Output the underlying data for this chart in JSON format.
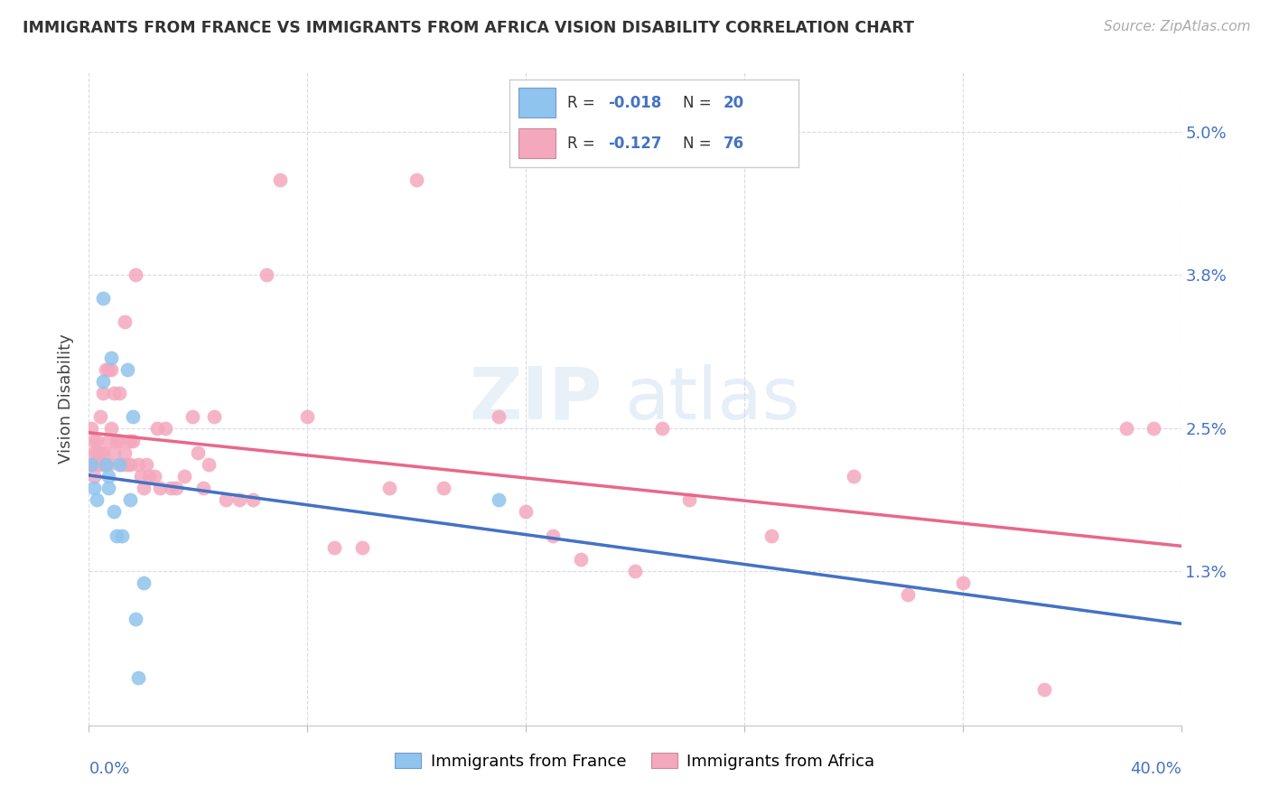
{
  "title": "IMMIGRANTS FROM FRANCE VS IMMIGRANTS FROM AFRICA VISION DISABILITY CORRELATION CHART",
  "source": "Source: ZipAtlas.com",
  "ylabel": "Vision Disability",
  "xlim": [
    0.0,
    0.4
  ],
  "ylim": [
    0.0,
    0.055
  ],
  "yticks": [
    0.0,
    0.013,
    0.025,
    0.038,
    0.05
  ],
  "ytick_labels": [
    "",
    "1.3%",
    "2.5%",
    "3.8%",
    "5.0%"
  ],
  "color_france": "#8ec4ed",
  "color_africa": "#f4a8be",
  "color_france_line": "#4472c4",
  "color_africa_line": "#e8688a",
  "color_france_dash": "#9ec8f0",
  "legend_r_france": "-0.018",
  "legend_n_france": "20",
  "legend_r_africa": "-0.127",
  "legend_n_africa": "76",
  "legend_color": "#4472c4",
  "watermark_zip": "ZIP",
  "watermark_atlas": "atlas",
  "france_x": [
    0.001,
    0.002,
    0.003,
    0.005,
    0.005,
    0.006,
    0.007,
    0.007,
    0.008,
    0.009,
    0.01,
    0.011,
    0.012,
    0.014,
    0.015,
    0.016,
    0.017,
    0.018,
    0.02,
    0.15
  ],
  "france_y": [
    0.022,
    0.02,
    0.019,
    0.036,
    0.029,
    0.022,
    0.021,
    0.02,
    0.031,
    0.018,
    0.016,
    0.022,
    0.016,
    0.03,
    0.019,
    0.026,
    0.009,
    0.004,
    0.012,
    0.019
  ],
  "africa_x": [
    0.001,
    0.001,
    0.002,
    0.002,
    0.002,
    0.003,
    0.003,
    0.003,
    0.004,
    0.004,
    0.004,
    0.005,
    0.005,
    0.005,
    0.006,
    0.006,
    0.007,
    0.007,
    0.007,
    0.008,
    0.008,
    0.009,
    0.009,
    0.01,
    0.011,
    0.011,
    0.012,
    0.013,
    0.013,
    0.014,
    0.015,
    0.015,
    0.016,
    0.017,
    0.018,
    0.019,
    0.02,
    0.021,
    0.022,
    0.024,
    0.025,
    0.026,
    0.028,
    0.03,
    0.032,
    0.035,
    0.038,
    0.04,
    0.042,
    0.044,
    0.046,
    0.05,
    0.055,
    0.06,
    0.065,
    0.07,
    0.08,
    0.09,
    0.1,
    0.11,
    0.12,
    0.13,
    0.15,
    0.16,
    0.17,
    0.18,
    0.2,
    0.21,
    0.22,
    0.25,
    0.28,
    0.3,
    0.32,
    0.35,
    0.38,
    0.39
  ],
  "africa_y": [
    0.022,
    0.025,
    0.021,
    0.023,
    0.024,
    0.022,
    0.023,
    0.024,
    0.022,
    0.023,
    0.026,
    0.022,
    0.023,
    0.028,
    0.022,
    0.03,
    0.022,
    0.024,
    0.03,
    0.025,
    0.03,
    0.023,
    0.028,
    0.024,
    0.024,
    0.028,
    0.022,
    0.023,
    0.034,
    0.022,
    0.022,
    0.024,
    0.024,
    0.038,
    0.022,
    0.021,
    0.02,
    0.022,
    0.021,
    0.021,
    0.025,
    0.02,
    0.025,
    0.02,
    0.02,
    0.021,
    0.026,
    0.023,
    0.02,
    0.022,
    0.026,
    0.019,
    0.019,
    0.019,
    0.038,
    0.046,
    0.026,
    0.015,
    0.015,
    0.02,
    0.046,
    0.02,
    0.026,
    0.018,
    0.016,
    0.014,
    0.013,
    0.025,
    0.019,
    0.016,
    0.021,
    0.011,
    0.012,
    0.003,
    0.025,
    0.025
  ]
}
